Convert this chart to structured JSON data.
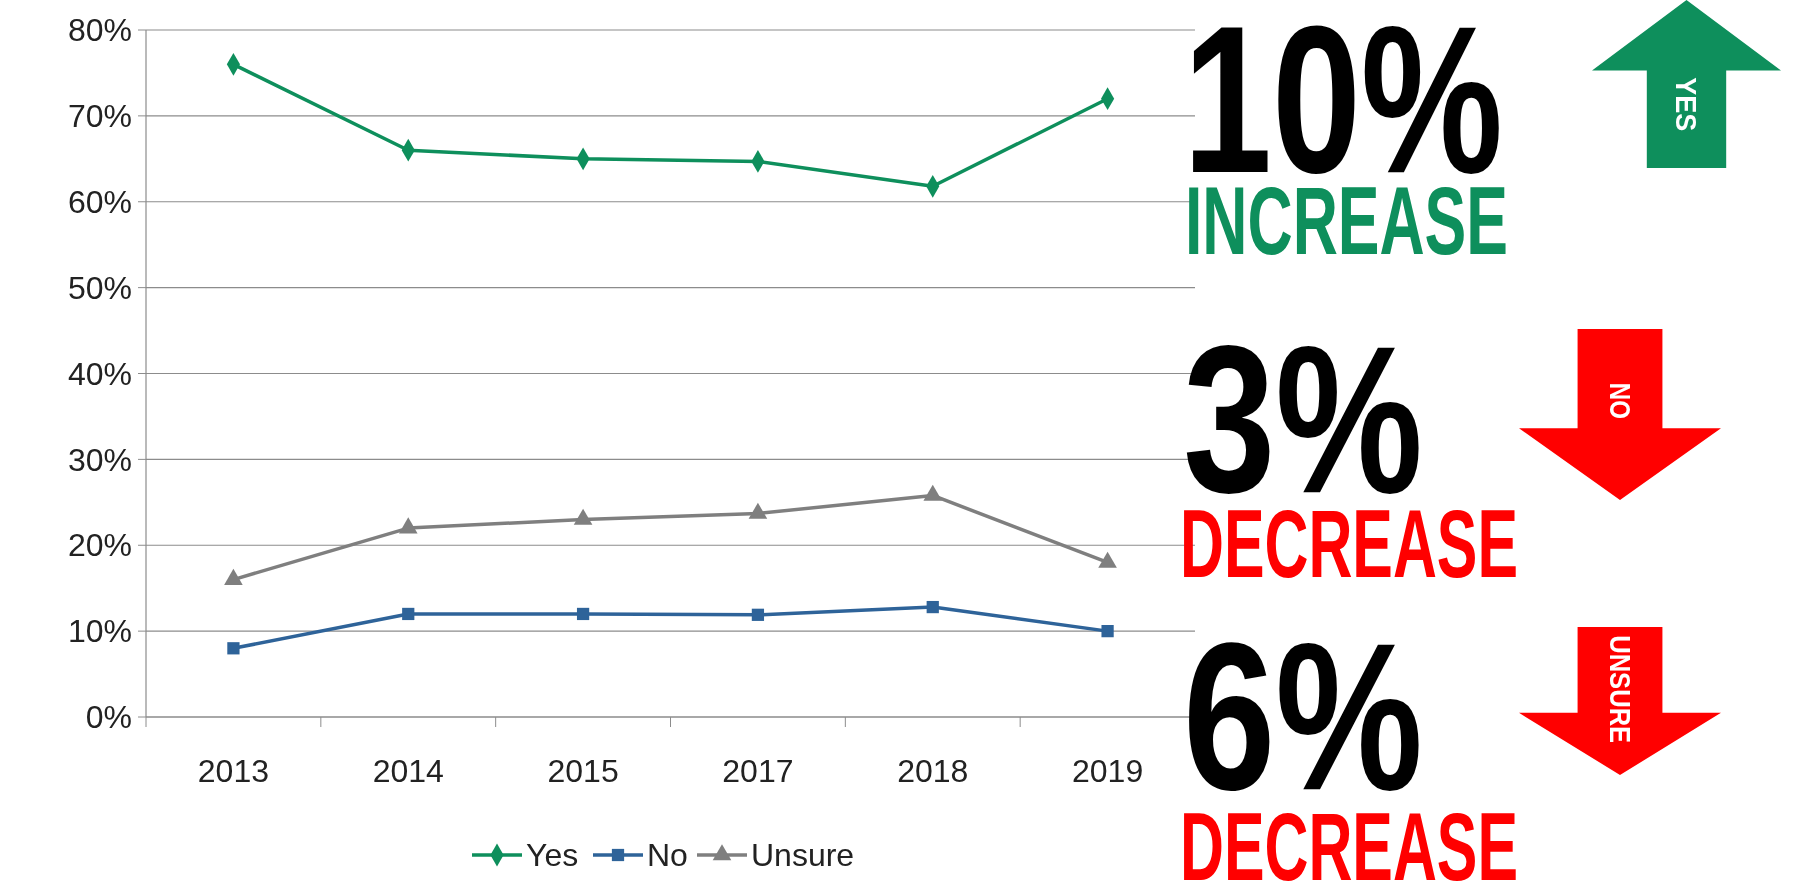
{
  "chart_data": {
    "type": "line",
    "categories": [
      "2013",
      "2014",
      "2015",
      "2017",
      "2018",
      "2019"
    ],
    "series": [
      {
        "name": "Yes",
        "color": "#0e8f5c",
        "marker": "diamond",
        "values": [
          76,
          66,
          65,
          64.7,
          61.8,
          72
        ]
      },
      {
        "name": "No",
        "color": "#2e6399",
        "marker": "square",
        "values": [
          8,
          12,
          12,
          11.9,
          12.8,
          10
        ]
      },
      {
        "name": "Unsure",
        "color": "#7f7f7f",
        "marker": "triangle",
        "values": [
          16,
          22,
          23,
          23.7,
          25.8,
          18
        ]
      }
    ],
    "ylim": [
      0,
      80
    ],
    "yticks": [
      {
        "value": 0,
        "label": "0%"
      },
      {
        "value": 10,
        "label": "10%"
      },
      {
        "value": 20,
        "label": "20%"
      },
      {
        "value": 30,
        "label": "30%"
      },
      {
        "value": 40,
        "label": "40%"
      },
      {
        "value": 50,
        "label": "50%"
      },
      {
        "value": 60,
        "label": "60%"
      },
      {
        "value": 70,
        "label": "70%"
      },
      {
        "value": 80,
        "label": "80%"
      }
    ],
    "grid": "y",
    "legend": "bottom",
    "line_style": "solid",
    "annotations": [
      "10%",
      "INCREASE",
      "YES",
      "3%",
      "DECREASE",
      "NO",
      "6%",
      "DECREASE",
      "UNSURE"
    ]
  }
}
